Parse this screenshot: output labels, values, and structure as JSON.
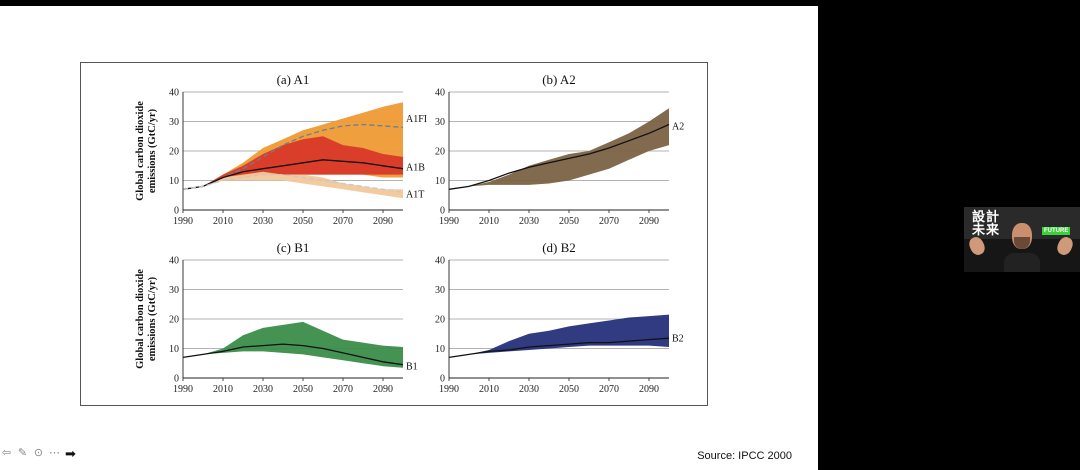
{
  "source": "Source: IPCC 2000",
  "y_axis_label": [
    "Global carbon dioxide",
    "emissions (GtC/yr)"
  ],
  "webcam": {
    "logo_top": "設計",
    "logo_bottom": "未来",
    "tag": "FUTURE"
  },
  "controls": [
    {
      "name": "previous-icon",
      "glyph": "⇦"
    },
    {
      "name": "pen-icon",
      "glyph": "✎"
    },
    {
      "name": "zoom-icon",
      "glyph": "⊙"
    },
    {
      "name": "more-icon",
      "glyph": "⋯"
    },
    {
      "name": "next-icon",
      "glyph": "➡"
    }
  ],
  "chart_data": [
    {
      "type": "area",
      "title": "(a) A1",
      "x": [
        1990,
        2000,
        2010,
        2020,
        2030,
        2040,
        2050,
        2060,
        2070,
        2080,
        2090,
        2100
      ],
      "xticks": [
        1990,
        2010,
        2030,
        2050,
        2070,
        2090
      ],
      "yticks": [
        0,
        10,
        20,
        30,
        40
      ],
      "ylim": [
        0,
        40
      ],
      "xlim": [
        1990,
        2100
      ],
      "bands": [
        {
          "name": "A1 range",
          "color": "#ee9a33",
          "upper": [
            7,
            8,
            12,
            16,
            21,
            24,
            27,
            29,
            31,
            33,
            35,
            36.5
          ],
          "lower": [
            7,
            8,
            10,
            11,
            12,
            12,
            12,
            12,
            12,
            12,
            11,
            11
          ]
        },
        {
          "name": "A1B range",
          "color": "#d8392a",
          "upper": [
            7,
            8,
            12,
            15,
            19,
            22,
            24,
            25,
            22,
            21,
            19,
            18
          ],
          "lower": [
            7,
            8,
            11,
            12,
            12,
            12,
            12,
            12,
            12,
            12,
            12,
            12
          ]
        },
        {
          "name": "A1T range",
          "color": "#f2c89a",
          "upper": [
            7,
            8,
            11,
            12,
            13,
            12,
            12,
            11,
            9,
            8,
            7,
            7
          ],
          "lower": [
            7,
            8,
            10,
            10,
            10,
            10,
            9,
            8,
            7,
            6,
            5,
            4
          ]
        }
      ],
      "series": [
        {
          "name": "A1FI",
          "style": "dashed",
          "color": "#6a7f95",
          "values": [
            7,
            8,
            11,
            14,
            18,
            22,
            25,
            27,
            28.5,
            29,
            28.5,
            28
          ]
        },
        {
          "name": "A1B",
          "style": "solid",
          "color": "#111111",
          "values": [
            7,
            8,
            11,
            13,
            14,
            15,
            16,
            17,
            16.5,
            16,
            15,
            14
          ]
        },
        {
          "name": "A1T",
          "style": "dashed",
          "color": "#c8c8c8",
          "values": [
            7,
            8,
            10,
            11,
            12,
            12,
            11,
            10,
            9,
            8,
            7,
            6
          ]
        }
      ],
      "end_labels": [
        {
          "text": "A1FI",
          "value": 31
        },
        {
          "text": "A1B",
          "value": 14.5
        },
        {
          "text": "A1T",
          "value": 5.5
        }
      ]
    },
    {
      "type": "area",
      "title": "(b) A2",
      "x": [
        1990,
        2000,
        2010,
        2020,
        2030,
        2040,
        2050,
        2060,
        2070,
        2080,
        2090,
        2100
      ],
      "xticks": [
        1990,
        2010,
        2030,
        2050,
        2070,
        2090
      ],
      "yticks": [
        0,
        10,
        20,
        30,
        40
      ],
      "ylim": [
        0,
        40
      ],
      "xlim": [
        1990,
        2100
      ],
      "bands": [
        {
          "name": "A2 range",
          "color": "#7a6244",
          "upper": [
            7,
            8,
            9.5,
            12,
            15,
            17,
            19,
            20,
            23,
            26,
            30,
            34.5
          ],
          "lower": [
            7,
            8,
            8.5,
            8.5,
            8.5,
            9,
            10,
            12,
            14,
            17,
            20,
            22
          ]
        }
      ],
      "series": [
        {
          "name": "A2",
          "style": "solid",
          "color": "#111111",
          "values": [
            7,
            8,
            10,
            12.5,
            14.5,
            16,
            17.5,
            19,
            21,
            23.5,
            26,
            29
          ]
        }
      ],
      "end_labels": [
        {
          "text": "A2",
          "value": 28.5
        }
      ]
    },
    {
      "type": "area",
      "title": "(c) B1",
      "x": [
        1990,
        2000,
        2010,
        2020,
        2030,
        2040,
        2050,
        2060,
        2070,
        2080,
        2090,
        2100
      ],
      "xticks": [
        1990,
        2010,
        2030,
        2050,
        2070,
        2090
      ],
      "yticks": [
        0,
        10,
        20,
        30,
        40
      ],
      "ylim": [
        0,
        40
      ],
      "xlim": [
        1990,
        2100
      ],
      "bands": [
        {
          "name": "B1 range",
          "color": "#3a8d4a",
          "upper": [
            7,
            8,
            10,
            14.5,
            17,
            18,
            19,
            16,
            13,
            12,
            11,
            10.5
          ],
          "lower": [
            7,
            8,
            8.5,
            9,
            9,
            8.5,
            8,
            7,
            6,
            5,
            4,
            3.5
          ]
        }
      ],
      "series": [
        {
          "name": "B1",
          "style": "solid",
          "color": "#111111",
          "values": [
            7,
            8,
            9,
            10.5,
            11,
            11.5,
            11,
            10,
            8.5,
            7,
            5.5,
            4.5
          ]
        }
      ],
      "end_labels": [
        {
          "text": "B1",
          "value": 4
        }
      ]
    },
    {
      "type": "area",
      "title": "(d) B2",
      "x": [
        1990,
        2000,
        2010,
        2020,
        2030,
        2040,
        2050,
        2060,
        2070,
        2080,
        2090,
        2100
      ],
      "xticks": [
        1990,
        2010,
        2030,
        2050,
        2070,
        2090
      ],
      "yticks": [
        0,
        10,
        20,
        30,
        40
      ],
      "ylim": [
        0,
        40
      ],
      "xlim": [
        1990,
        2100
      ],
      "bands": [
        {
          "name": "B2 range",
          "color": "#25307a",
          "upper": [
            7,
            8,
            9.5,
            12.5,
            15,
            16,
            17.5,
            18.5,
            19.5,
            20.5,
            21,
            21.5
          ],
          "lower": [
            7,
            8,
            8.5,
            9,
            9.5,
            10,
            10.5,
            11,
            11,
            11,
            11,
            10.5
          ]
        }
      ],
      "series": [
        {
          "name": "B2",
          "style": "solid",
          "color": "#111111",
          "values": [
            7,
            8,
            9,
            9.5,
            10.5,
            11,
            11.5,
            12,
            12,
            12.5,
            13,
            13.5
          ]
        }
      ],
      "end_labels": [
        {
          "text": "B2",
          "value": 13.5
        }
      ]
    }
  ]
}
